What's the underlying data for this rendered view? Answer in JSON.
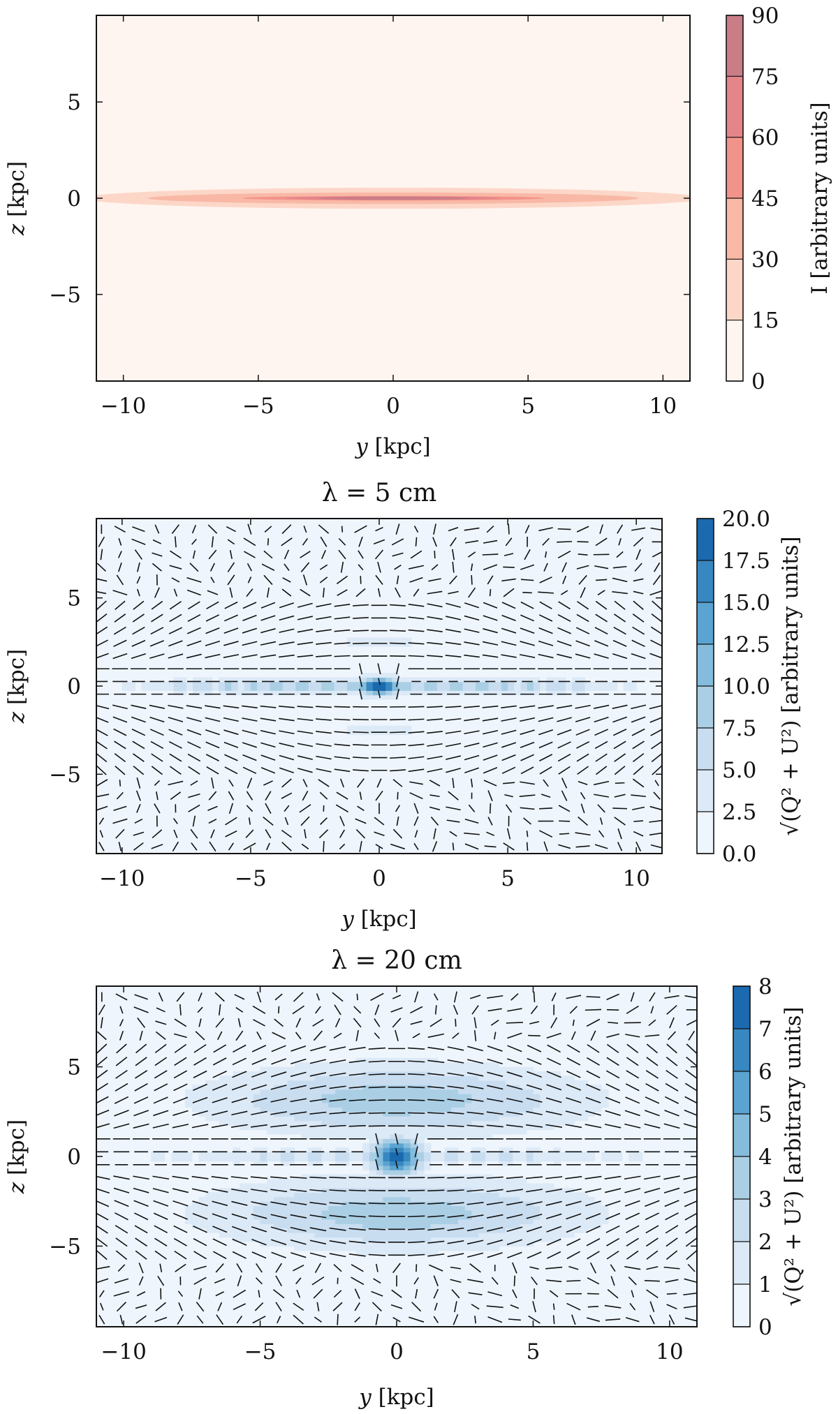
{
  "chart_data": [
    {
      "type": "heatmap",
      "variant": "filled-contour",
      "title": "",
      "xlabel": "y [kpc]",
      "ylabel": "z [kpc]",
      "xlim": [
        -11,
        11
      ],
      "ylim": [
        -9.5,
        9.5
      ],
      "xticks": [
        -10,
        -5,
        0,
        5,
        10
      ],
      "xtick_labels": [
        "−10",
        "−5",
        "0",
        "5",
        "10"
      ],
      "yticks": [
        -5,
        0,
        5
      ],
      "ytick_labels": [
        "−5",
        "0",
        "5"
      ],
      "colorbar": {
        "label": "I [arbitrary units]",
        "levels": [
          0,
          15,
          30,
          45,
          60,
          75,
          90
        ],
        "tick_labels": [
          "0",
          "15",
          "30",
          "45",
          "60",
          "75",
          "90"
        ],
        "colors": [
          "#fff5f0",
          "#fcd7c8",
          "#f9b8a6",
          "#f2938a",
          "#e5848a",
          "#c97d87"
        ]
      },
      "contours": [
        {
          "level": 15,
          "half_width_kpc": 11.5,
          "half_height_kpc": 0.55
        },
        {
          "level": 30,
          "half_width_kpc": 9.1,
          "half_height_kpc": 0.3
        },
        {
          "level": 45,
          "half_width_kpc": 5.6,
          "half_height_kpc": 0.12
        },
        {
          "level": 60,
          "half_width_kpc": 4.0,
          "half_height_kpc": 0.1
        },
        {
          "level": 75,
          "half_width_kpc": 2.8,
          "half_height_kpc": 0.08
        }
      ]
    },
    {
      "type": "heatmap",
      "variant": "filled-contour-with-polarization-vectors",
      "title": "λ = 5 cm",
      "xlabel": "y [kpc]",
      "ylabel": "z [kpc]",
      "xlim": [
        -11,
        11
      ],
      "ylim": [
        -9.5,
        9.5
      ],
      "xticks": [
        -10,
        -5,
        0,
        5,
        10
      ],
      "xtick_labels": [
        "−10",
        "−5",
        "0",
        "5",
        "10"
      ],
      "yticks": [
        -5,
        0,
        5
      ],
      "ytick_labels": [
        "−5",
        "0",
        "5"
      ],
      "colorbar": {
        "label": "√(Q² + U²) [arbitrary units]",
        "levels": [
          0.0,
          2.5,
          5.0,
          7.5,
          10.0,
          12.5,
          15.0,
          17.5,
          20.0
        ],
        "tick_labels": [
          "0.0",
          "2.5",
          "5.0",
          "7.5",
          "10.0",
          "12.5",
          "15.0",
          "17.5",
          "20.0"
        ],
        "colors": [
          "#eef5fc",
          "#dce9f6",
          "#c9ddf0",
          "#aacfe5",
          "#85bcdc",
          "#5ba3d0",
          "#3787c0",
          "#1b69af",
          "#08478c"
        ]
      },
      "emission": {
        "halo_peak": 2.6,
        "disk_peak": 17.5,
        "core_peak": 20.0
      },
      "vectors": {
        "pattern": "x-shaped halo field",
        "halo_height_kpc": 3.5
      }
    },
    {
      "type": "heatmap",
      "variant": "filled-contour-with-polarization-vectors",
      "title": "λ = 20 cm",
      "xlabel": "y [kpc]",
      "ylabel": "z [kpc]",
      "xlim": [
        -11,
        11
      ],
      "ylim": [
        -9.5,
        9.5
      ],
      "xticks": [
        -10,
        -5,
        0,
        5,
        10
      ],
      "xtick_labels": [
        "−10",
        "−5",
        "0",
        "5",
        "10"
      ],
      "yticks": [
        -5,
        0,
        5
      ],
      "ytick_labels": [
        "−5",
        "0",
        "5"
      ],
      "colorbar": {
        "label": "√(Q² + U²) [arbitrary units]",
        "levels": [
          0,
          1,
          2,
          3,
          4,
          5,
          6,
          7,
          8
        ],
        "tick_labels": [
          "0",
          "1",
          "2",
          "3",
          "4",
          "5",
          "6",
          "7",
          "8"
        ],
        "colors": [
          "#eef5fc",
          "#dce9f6",
          "#c9ddf0",
          "#aacfe5",
          "#85bcdc",
          "#5ba3d0",
          "#3787c0",
          "#1b69af"
        ]
      },
      "emission": {
        "halo_peak": 3.5,
        "disk_peak": 4.5,
        "core_peak": 8.0
      },
      "vectors": {
        "pattern": "x-shaped halo field",
        "halo_height_kpc": 4.5
      }
    }
  ]
}
